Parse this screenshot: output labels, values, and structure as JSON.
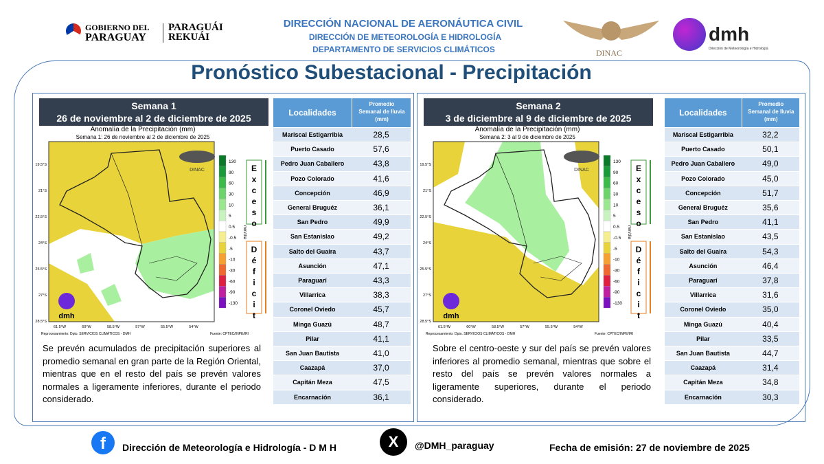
{
  "header": {
    "gov_line1": "GOBIERNO DEL",
    "gov_line2": "PARAGUAY",
    "gov_line3": "PARAGUÁI",
    "gov_line4": "REKUÁI",
    "org1": "DIRECCIÓN NACIONAL DE AERONÁUTICA CIVIL",
    "org2": "DIRECCIÓN DE METEOROLOGÍA  E HIDROLOGÍA",
    "org3": "DEPARTAMENTO DE SERVICIOS CLIMÁTICOS",
    "dinac": "DINAC",
    "dmh": "dmh",
    "dmh_caption": "Dirección de Meteorología e Hidrología"
  },
  "title": "Pronóstico Subestacional - Precipitación",
  "panels": [
    {
      "week": "Semana 1",
      "dates": "26 de noviembre al 2 de diciembre de 2025",
      "map_title": "Anomalía de la Precipitación (mm)",
      "map_subtitle": "Semana 1: 26 de noviembre al 2 de diciembre de 2025",
      "lat_labels": [
        "19.5°S",
        "21°S",
        "22.5°S",
        "24°S",
        "25.5°S",
        "27°S",
        "28.5°S"
      ],
      "lon_labels": [
        "61.5°W",
        "60°W",
        "58.5°W",
        "57°W",
        "55.5°W",
        "54°W"
      ],
      "scale_ticks": [
        "130",
        "90",
        "60",
        "30",
        "10",
        "5",
        "0.5",
        "-0.5",
        "-5",
        "-10",
        "-30",
        "-60",
        "-90",
        "-130"
      ],
      "unit": "mm/día",
      "excess": "Exceso",
      "deficit": "Déficit",
      "map_logo": "DINAC",
      "map_dmh": "dmh",
      "credit_left": "Reprocesamiento: Dpto. SERVICIOS CLIMÁTICOS - DMH",
      "credit_right": "Fuente: CPTEC/INPE/IRI",
      "description": "Se prevén acumulados de precipitación superiores al promedio semanal en gran parte de la Región Oriental, mientras que en el resto del país se prevén valores normales a ligeramente inferiores, durante el periodo considerado.",
      "table": {
        "headers": [
          "Localidades",
          "Promedio Semanal de lluvia (mm)"
        ],
        "rows": [
          [
            "Mariscal Estigarribia",
            "28,5"
          ],
          [
            "Puerto Casado",
            "57,6"
          ],
          [
            "Pedro Juan Caballero",
            "43,8"
          ],
          [
            "Pozo Colorado",
            "41,6"
          ],
          [
            "Concepción",
            "46,9"
          ],
          [
            "General Bruguéz",
            "36,1"
          ],
          [
            "San Pedro",
            "49,9"
          ],
          [
            "San Estanislao",
            "49,2"
          ],
          [
            "Salto del Guaira",
            "43,7"
          ],
          [
            "Asunción",
            "47,1"
          ],
          [
            "Paraguarí",
            "43,3"
          ],
          [
            "Villarrica",
            "38,3"
          ],
          [
            "Coronel Oviedo",
            "45,7"
          ],
          [
            "Minga Guazú",
            "48,7"
          ],
          [
            "Pilar",
            "41,1"
          ],
          [
            "San Juan Bautista",
            "41,0"
          ],
          [
            "Caazapá",
            "37,0"
          ],
          [
            "Capitán Meza",
            "47,5"
          ],
          [
            "Encarnación",
            "36,1"
          ]
        ]
      }
    },
    {
      "week": "Semana 2",
      "dates": "3 de diciembre al 9 de diciembre de 2025",
      "map_title": "Anomalía de la Precipitación (mm)",
      "map_subtitle": "Semana 2: 3 al 9 de diciembre de 2025",
      "lat_labels": [
        "19.5°S",
        "21°S",
        "22.5°S",
        "24°S",
        "25.5°S",
        "27°S",
        "28.5°S"
      ],
      "lon_labels": [
        "61.5°W",
        "60°W",
        "58.5°W",
        "57°W",
        "55.5°W",
        "54°W"
      ],
      "scale_ticks": [
        "130",
        "90",
        "60",
        "30",
        "10",
        "5",
        "0.5",
        "-0.5",
        "-5",
        "-10",
        "-30",
        "-60",
        "-90",
        "-130"
      ],
      "unit": "mm/día",
      "excess": "Exceso",
      "deficit": "Déficit",
      "map_logo": "DINAC",
      "map_dmh": "dmh",
      "credit_left": "Reprocesamiento: Dpto. SERVICIOS CLIMÁTICOS - DMH",
      "credit_right": "Fuente: CPTEC/INPE/IRI",
      "description": "Sobre el centro-oeste y sur del país se prevén valores inferiores al promedio semanal, mientras que sobre el resto del país se prevén valores normales a ligeramente superiores, durante el periodo considerado.",
      "table": {
        "headers": [
          "Localidades",
          "Promedio Semanal de lluvia (mm)"
        ],
        "rows": [
          [
            "Mariscal Estigarribia",
            "32,2"
          ],
          [
            "Puerto Casado",
            "50,1"
          ],
          [
            "Pedro Juan Caballero",
            "49,0"
          ],
          [
            "Pozo Colorado",
            "45,0"
          ],
          [
            "Concepción",
            "51,7"
          ],
          [
            "General Bruguéz",
            "35,6"
          ],
          [
            "San Pedro",
            "41,1"
          ],
          [
            "San Estanislao",
            "43,5"
          ],
          [
            "Salto del Guaira",
            "54,3"
          ],
          [
            "Asunción",
            "46,4"
          ],
          [
            "Paraguarí",
            "37,8"
          ],
          [
            "Villarrica",
            "31,6"
          ],
          [
            "Coronel Oviedo",
            "35,0"
          ],
          [
            "Minga Guazú",
            "40,4"
          ],
          [
            "Pilar",
            "33,5"
          ],
          [
            "San Juan Bautista",
            "44,7"
          ],
          [
            "Caazapá",
            "31,4"
          ],
          [
            "Capitán Meza",
            "34,8"
          ],
          [
            "Encarnación",
            "30,3"
          ]
        ]
      }
    }
  ],
  "footer": {
    "facebook": "Dirección de Meteorología e Hidrología - D M H",
    "x_handle": "@DMH_paraguay",
    "date": "Fecha de emisión: 27 de noviembre de 2025"
  }
}
